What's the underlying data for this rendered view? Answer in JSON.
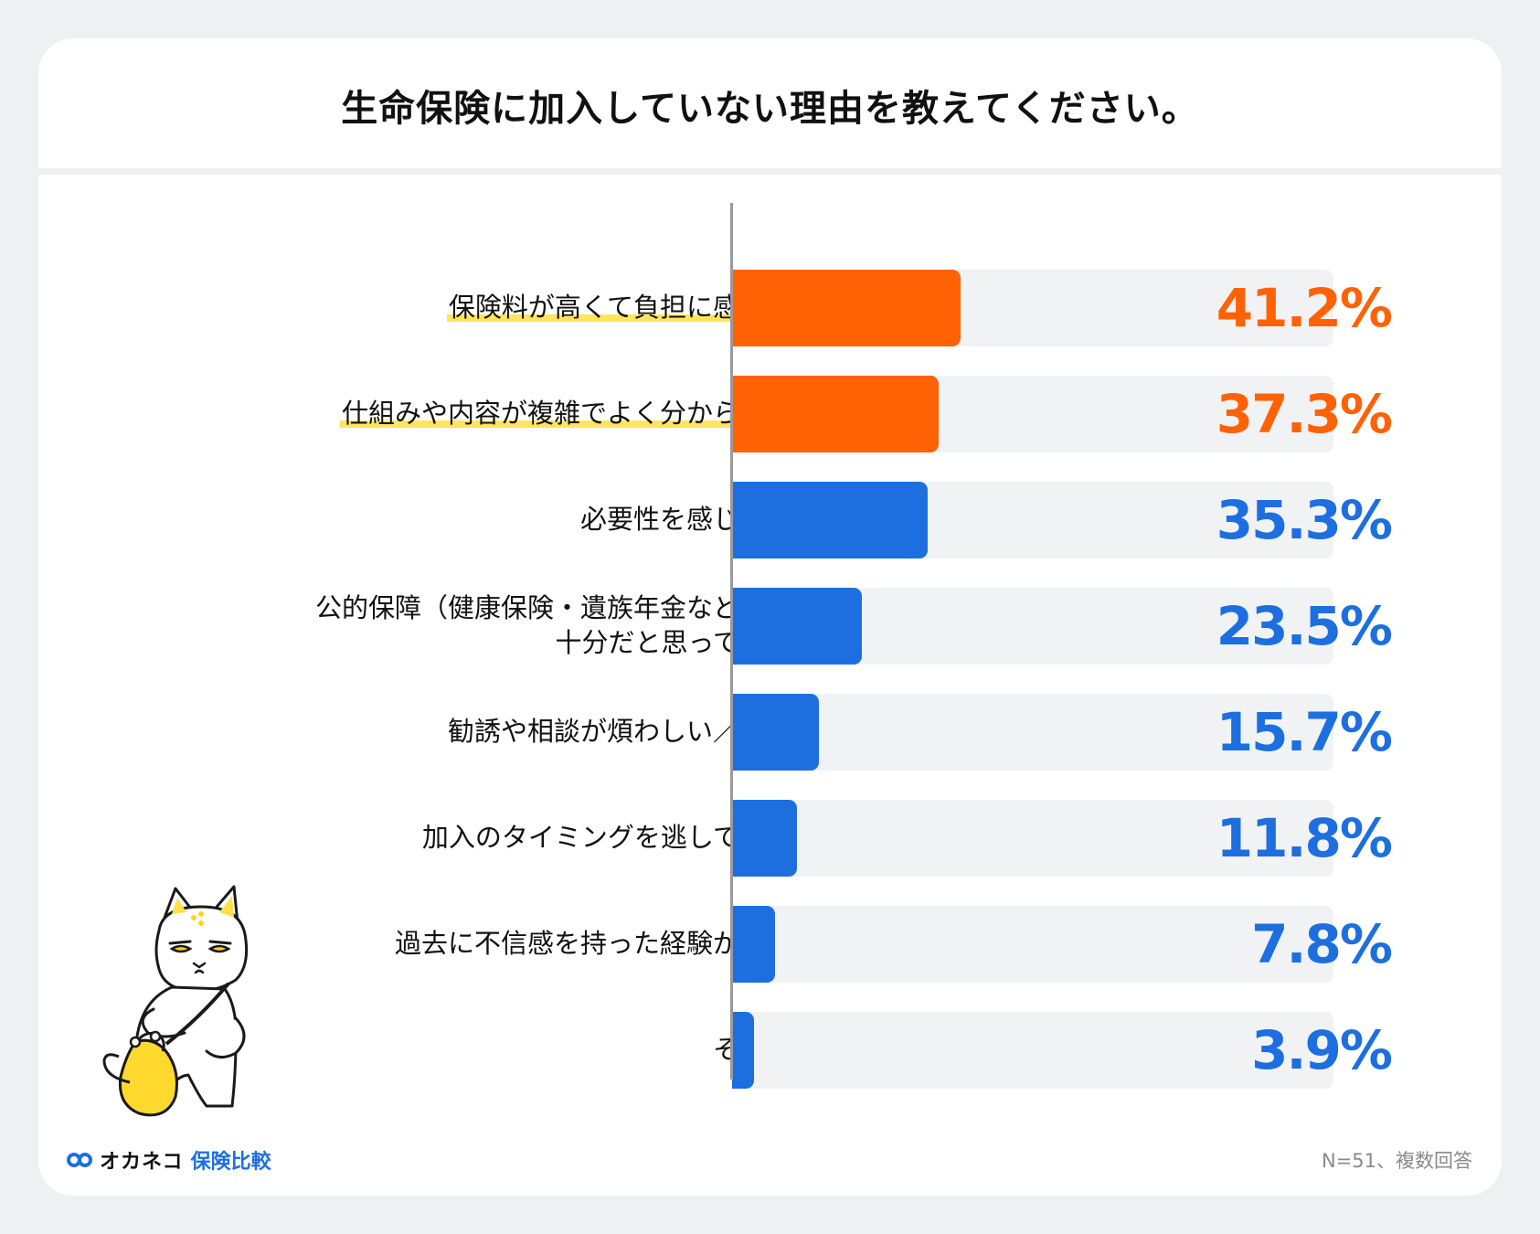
{
  "title": "生命保険に加入していない理由を教えてください。",
  "chart_data": {
    "type": "bar",
    "orientation": "horizontal",
    "title": "生命保険に加入していない理由を教えてください。",
    "categories": [
      "保険料が高くて負担に感じる",
      "仕組みや内容が複雑でよく分からない",
      "必要性を感じない",
      "公的保障（健康保険・遺族年金など）で\n十分だと思っている",
      "勧誘や相談が煩わしい／苦手",
      "加入のタイミングを逃している",
      "過去に不信感を持った経験がある",
      "その他"
    ],
    "values": [
      41.2,
      37.3,
      35.3,
      23.5,
      15.7,
      11.8,
      7.8,
      3.9
    ],
    "value_labels": [
      "41.2%",
      "37.3%",
      "35.3%",
      "23.5%",
      "15.7%",
      "11.8%",
      "7.8%",
      "3.9%"
    ],
    "highlighted": [
      true,
      true,
      false,
      false,
      false,
      false,
      false,
      false
    ],
    "colors": {
      "highlight": "#ff6205",
      "normal": "#1d6fe0",
      "track": "#f1f2f4",
      "marker": "#ffe55c"
    },
    "xlim": [
      0,
      100
    ]
  },
  "footer": {
    "brand": "オカネコ",
    "brand_sub": "保険比較",
    "note": "N=51、複数回答"
  }
}
